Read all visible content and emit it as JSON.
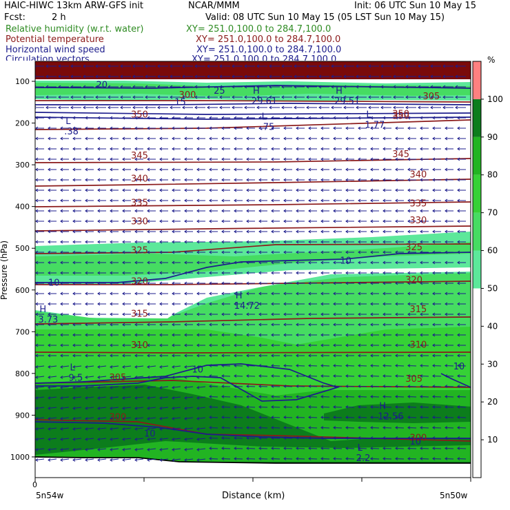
{
  "header": {
    "model": "HAIC-HIWC 13km ARW-GFS init",
    "center": "NCAR/MMM",
    "init": "Init: 06 UTC Sun 10 May 15",
    "fcst_label": "Fcst:",
    "fcst_value": "2 h",
    "valid": "Valid: 08 UTC Sun 10 May 15 (05 LST Sun 10 May 15)"
  },
  "legend": [
    {
      "name": "Relative humidity (w.r.t. water)",
      "xy": "XY= 251.0,100.0 to 284.7,100.0",
      "color": "#2e8b22"
    },
    {
      "name": "Potential temperature",
      "xy": "XY= 251.0,100.0 to 284.7,100.0",
      "color": "#8b1a1a"
    },
    {
      "name": "Horizontal wind speed",
      "xy": "XY= 251.0,100.0 to 284.7,100.0",
      "color": "#1c1c8c"
    },
    {
      "name": "Circulation vectors",
      "xy": "XY= 251.0,100.0 to 284.7,100.0",
      "color": "#1c1c8c"
    }
  ],
  "chart_data": {
    "type": "heatmap",
    "ylabel": "Pressure (hPa)",
    "xlabel": "Distance (km)",
    "x_left_tick": "0",
    "x_left_label": "5n54w",
    "x_right_label": "5n50w",
    "y_ticks": [
      100,
      200,
      300,
      400,
      500,
      600,
      700,
      800,
      900,
      1000
    ],
    "colorbar": {
      "unit": "%",
      "ticks": [
        10,
        20,
        30,
        40,
        50,
        60,
        70,
        80,
        90,
        100
      ],
      "bins": [
        {
          "lo": 50,
          "hi": 60,
          "color": "#5ce89a"
        },
        {
          "lo": 60,
          "hi": 70,
          "color": "#46dc62"
        },
        {
          "lo": 70,
          "hi": 80,
          "color": "#36d136"
        },
        {
          "lo": 80,
          "hi": 90,
          "color": "#22b422"
        },
        {
          "lo": 90,
          "hi": 100,
          "color": "#0c7d1c"
        },
        {
          "lo": 100,
          "hi": 110,
          "color": "#ff8080"
        }
      ]
    },
    "theta_contour_labels": [
      {
        "text": "350",
        "x": 0.22,
        "p": 187
      },
      {
        "text": "350",
        "x": 0.82,
        "p": 185
      },
      {
        "text": "350",
        "x": 0.82,
        "p": 190
      },
      {
        "text": "345",
        "x": 0.22,
        "p": 285
      },
      {
        "text": "345",
        "x": 0.82,
        "p": 282
      },
      {
        "text": "340",
        "x": 0.22,
        "p": 340
      },
      {
        "text": "340",
        "x": 0.86,
        "p": 330
      },
      {
        "text": "335",
        "x": 0.22,
        "p": 398
      },
      {
        "text": "335",
        "x": 0.86,
        "p": 400
      },
      {
        "text": "330",
        "x": 0.22,
        "p": 443
      },
      {
        "text": "330",
        "x": 0.86,
        "p": 440
      },
      {
        "text": "325",
        "x": 0.22,
        "p": 512
      },
      {
        "text": "325",
        "x": 0.85,
        "p": 505
      },
      {
        "text": "320",
        "x": 0.22,
        "p": 586
      },
      {
        "text": "320",
        "x": 0.85,
        "p": 583
      },
      {
        "text": "315",
        "x": 0.22,
        "p": 664
      },
      {
        "text": "315",
        "x": 0.86,
        "p": 653
      },
      {
        "text": "310",
        "x": 0.22,
        "p": 739
      },
      {
        "text": "310",
        "x": 0.86,
        "p": 738
      },
      {
        "text": "305",
        "x": 0.17,
        "p": 817
      },
      {
        "text": "305",
        "x": 0.85,
        "p": 820
      },
      {
        "text": "300",
        "x": 0.17,
        "p": 912
      },
      {
        "text": "300",
        "x": 0.86,
        "p": 961
      },
      {
        "text": "300",
        "x": 0.33,
        "p": 140
      },
      {
        "text": "305",
        "x": 0.89,
        "p": 143
      }
    ],
    "wind_contour_labels": [
      {
        "text": "10",
        "x": 0.7,
        "p": 537
      },
      {
        "text": "10",
        "x": 0.03,
        "p": 590
      },
      {
        "text": "10",
        "x": 0.36,
        "p": 798
      },
      {
        "text": "10",
        "x": 0.96,
        "p": 790
      },
      {
        "text": "10",
        "x": 0.25,
        "p": 951
      },
      {
        "text": "10",
        "x": 0.86,
        "p": 970
      },
      {
        "text": "15",
        "x": 0.32,
        "p": 157
      },
      {
        "text": "25",
        "x": 0.41,
        "p": 130
      },
      {
        "text": "20",
        "x": 0.14,
        "p": 116
      }
    ],
    "extrema": [
      {
        "letter": "H",
        "value": "14.72",
        "x": 0.46,
        "p": 625
      },
      {
        "letter": "H",
        "value": "3.73",
        "x": 0.01,
        "p": 658
      },
      {
        "letter": "L",
        "value": "9.5",
        "x": 0.08,
        "p": 798
      },
      {
        "letter": "H",
        "value": "12.56",
        "x": 0.79,
        "p": 890
      },
      {
        "letter": "L",
        "value": "2.2",
        "x": 0.74,
        "p": 990
      },
      {
        "letter": "L",
        "value": ".38",
        "x": 0.07,
        "p": 207
      },
      {
        "letter": "L",
        "value": ".75",
        "x": 0.52,
        "p": 197
      },
      {
        "letter": "L",
        "value": "1.77",
        "x": 0.76,
        "p": 192
      },
      {
        "letter": "H",
        "value": "29.61",
        "x": 0.5,
        "p": 135
      },
      {
        "letter": "H",
        "value": "29.51",
        "x": 0.69,
        "p": 135
      }
    ]
  }
}
